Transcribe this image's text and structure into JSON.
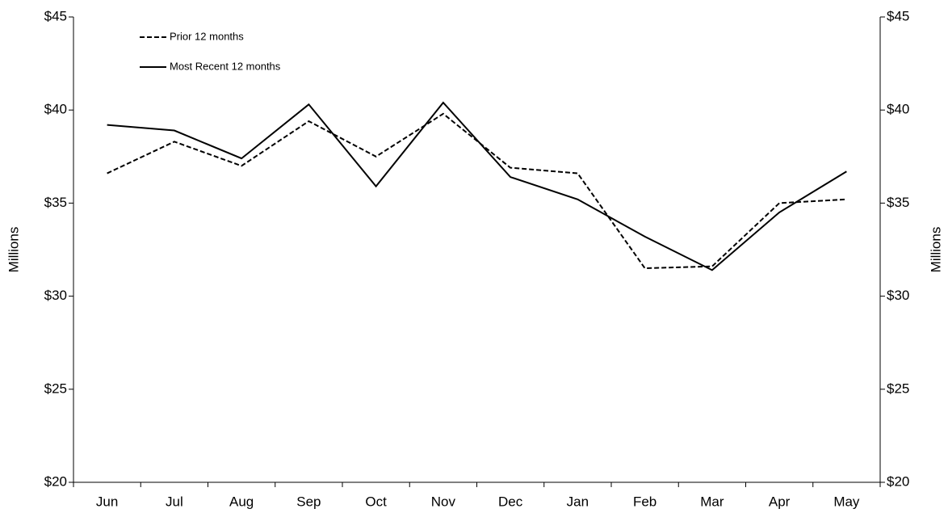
{
  "chart_data": {
    "type": "line",
    "ylabel": "Millions",
    "y2label": "Millions",
    "categories": [
      "Jun",
      "Jul",
      "Aug",
      "Sep",
      "Oct",
      "Nov",
      "Dec",
      "Jan",
      "Feb",
      "Mar",
      "Apr",
      "May"
    ],
    "series": [
      {
        "name": "Prior 12 months",
        "color": "#000000",
        "line_style": "dashed",
        "values": [
          36.6,
          38.3,
          37.0,
          39.4,
          37.5,
          39.8,
          36.9,
          36.6,
          31.5,
          31.6,
          35.0,
          35.2
        ]
      },
      {
        "name": "Most Recent 12 months",
        "color": "#000000",
        "line_style": "solid",
        "values": [
          39.2,
          38.9,
          37.4,
          40.3,
          35.9,
          40.4,
          36.4,
          35.2,
          33.2,
          31.4,
          34.5,
          36.7
        ]
      }
    ],
    "ylim": [
      20,
      45
    ],
    "yticks": [
      {
        "value": 20,
        "label": "$20"
      },
      {
        "value": 25,
        "label": "$25"
      },
      {
        "value": 30,
        "label": "$30"
      },
      {
        "value": 35,
        "label": "$35"
      },
      {
        "value": 40,
        "label": "$40"
      },
      {
        "value": 45,
        "label": "$45"
      }
    ],
    "y2lim": [
      20,
      45
    ],
    "y2ticks": [
      {
        "value": 20,
        "label": "$20"
      },
      {
        "value": 25,
        "label": "$25"
      },
      {
        "value": 30,
        "label": "$30"
      },
      {
        "value": 35,
        "label": "$35"
      },
      {
        "value": 40,
        "label": "$40"
      },
      {
        "value": 45,
        "label": "$45"
      }
    ],
    "legend": "top-left",
    "grid": false
  }
}
